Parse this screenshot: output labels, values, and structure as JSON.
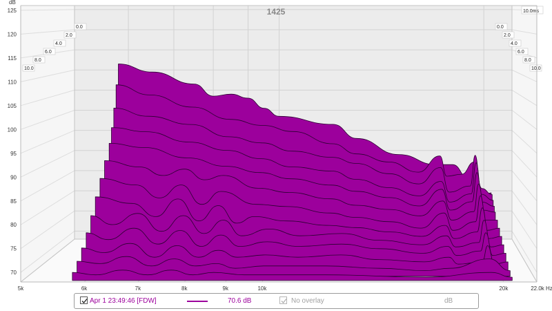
{
  "chart_data": {
    "type": "area",
    "variant": "waterfall-3d",
    "title": "1425",
    "y_unit": "dB",
    "x_unit": "Hz",
    "ylim": [
      68,
      126
    ],
    "xlim_hz": [
      5000,
      22000
    ],
    "y_ticks": [
      70,
      75,
      80,
      85,
      90,
      95,
      100,
      105,
      110,
      115,
      120,
      125
    ],
    "x_ticks": [
      {
        "hz": 5000,
        "label": "5k"
      },
      {
        "hz": 6000,
        "label": "6k"
      },
      {
        "hz": 7000,
        "label": "7k"
      },
      {
        "hz": 8000,
        "label": "8k"
      },
      {
        "hz": 9000,
        "label": "9k"
      },
      {
        "hz": 10000,
        "label": "10k"
      },
      {
        "hz": 20000,
        "label": "20k"
      },
      {
        "hz": 22000,
        "label": "22.0k Hz"
      }
    ],
    "time_ticks_ms": [
      "0.0",
      "2.0",
      "4.0",
      "6.0",
      "8.0",
      "10.0"
    ],
    "time_max_label": "10.0ms",
    "grid": true,
    "fill_color": "#9c009c",
    "line_color": "#2a0030",
    "series": [
      {
        "time_ms": 0.0,
        "points": [
          [
            5800,
            111.5
          ],
          [
            6500,
            109.5
          ],
          [
            7500,
            106.5
          ],
          [
            8000,
            103.5
          ],
          [
            8500,
            104
          ],
          [
            9000,
            103
          ],
          [
            9500,
            100.5
          ],
          [
            10000,
            98.5
          ],
          [
            12000,
            96.5
          ],
          [
            13000,
            93
          ],
          [
            15000,
            89
          ],
          [
            17000,
            86.5
          ],
          [
            18000,
            86.5
          ],
          [
            19000,
            83
          ],
          [
            20000,
            79
          ],
          [
            20500,
            79.5
          ]
        ]
      },
      {
        "time_ms": 0.5,
        "points": [
          [
            5800,
            106.5
          ],
          [
            6500,
            104
          ],
          [
            7500,
            101
          ],
          [
            8500,
            98
          ],
          [
            9500,
            96.5
          ],
          [
            10500,
            95
          ],
          [
            12000,
            92
          ],
          [
            13000,
            89.5
          ],
          [
            14500,
            87.5
          ],
          [
            16000,
            85
          ],
          [
            17200,
            89
          ],
          [
            17600,
            84
          ],
          [
            18500,
            84.5
          ],
          [
            19300,
            87.5
          ],
          [
            19800,
            81
          ],
          [
            20500,
            79.5
          ]
        ]
      },
      {
        "time_ms": 1.0,
        "points": [
          [
            5800,
            101
          ],
          [
            6500,
            99
          ],
          [
            7500,
            97
          ],
          [
            8500,
            94
          ],
          [
            9500,
            92.5
          ],
          [
            10500,
            90.5
          ],
          [
            12000,
            89
          ],
          [
            13000,
            87.5
          ],
          [
            14500,
            85
          ],
          [
            16000,
            82.5
          ],
          [
            17200,
            86.5
          ],
          [
            17700,
            80.5
          ],
          [
            19000,
            82
          ],
          [
            19300,
            89.5
          ],
          [
            19700,
            80
          ],
          [
            20500,
            78.5
          ]
        ]
      },
      {
        "time_ms": 1.5,
        "points": [
          [
            5800,
            96.5
          ],
          [
            6500,
            95.5
          ],
          [
            7500,
            93
          ],
          [
            8500,
            91
          ],
          [
            9500,
            89
          ],
          [
            10500,
            87
          ],
          [
            12000,
            86
          ],
          [
            13000,
            84
          ],
          [
            14500,
            82
          ],
          [
            16000,
            80
          ],
          [
            17200,
            83.5
          ],
          [
            17700,
            78.5
          ],
          [
            19000,
            80.5
          ],
          [
            19300,
            88
          ],
          [
            19700,
            78.5
          ],
          [
            20500,
            77.5
          ]
        ]
      },
      {
        "time_ms": 2.0,
        "points": [
          [
            5800,
            93
          ],
          [
            6500,
            92
          ],
          [
            7500,
            89.5
          ],
          [
            8500,
            87.5
          ],
          [
            9500,
            86
          ],
          [
            10500,
            84.5
          ],
          [
            12000,
            83
          ],
          [
            13000,
            81.5
          ],
          [
            14500,
            80
          ],
          [
            16000,
            78
          ],
          [
            17200,
            82
          ],
          [
            17700,
            77
          ],
          [
            19000,
            79
          ],
          [
            19300,
            86
          ],
          [
            19700,
            77
          ],
          [
            20500,
            76.5
          ]
        ]
      },
      {
        "time_ms": 3.0,
        "points": [
          [
            5800,
            89.5
          ],
          [
            6500,
            88
          ],
          [
            7000,
            86
          ],
          [
            7500,
            87.5
          ],
          [
            8000,
            85
          ],
          [
            8500,
            86
          ],
          [
            9500,
            83
          ],
          [
            10500,
            82
          ],
          [
            12000,
            80.5
          ],
          [
            13000,
            79
          ],
          [
            14500,
            78
          ],
          [
            16000,
            76.5
          ],
          [
            17200,
            80
          ],
          [
            17700,
            75.5
          ],
          [
            19000,
            77.5
          ],
          [
            19300,
            84
          ],
          [
            19700,
            75.5
          ],
          [
            20500,
            75.5
          ]
        ]
      },
      {
        "time_ms": 4.0,
        "points": [
          [
            5800,
            86
          ],
          [
            6500,
            84.5
          ],
          [
            7000,
            81.5
          ],
          [
            7500,
            84.5
          ],
          [
            8000,
            80
          ],
          [
            8500,
            83
          ],
          [
            9500,
            80
          ],
          [
            10500,
            79.5
          ],
          [
            12000,
            78
          ],
          [
            13000,
            77
          ],
          [
            14500,
            76
          ],
          [
            16000,
            74.5
          ],
          [
            17200,
            78
          ],
          [
            17700,
            74
          ],
          [
            19000,
            76
          ],
          [
            19300,
            82
          ],
          [
            19700,
            74
          ],
          [
            20500,
            74.5
          ]
        ]
      },
      {
        "time_ms": 5.0,
        "points": [
          [
            5800,
            82.5
          ],
          [
            6500,
            81
          ],
          [
            7000,
            78
          ],
          [
            7500,
            82
          ],
          [
            8000,
            77
          ],
          [
            8500,
            80.5
          ],
          [
            9000,
            76.5
          ],
          [
            9500,
            78
          ],
          [
            10500,
            77
          ],
          [
            12000,
            76
          ],
          [
            13000,
            75.5
          ],
          [
            14500,
            74.5
          ],
          [
            16000,
            73.5
          ],
          [
            17200,
            76
          ],
          [
            17700,
            73
          ],
          [
            19000,
            74.5
          ],
          [
            19300,
            80
          ],
          [
            19700,
            73
          ],
          [
            20500,
            73.5
          ]
        ]
      },
      {
        "time_ms": 6.0,
        "points": [
          [
            5800,
            79
          ],
          [
            6200,
            77
          ],
          [
            6700,
            79.5
          ],
          [
            7200,
            75.5
          ],
          [
            7700,
            79
          ],
          [
            8200,
            75
          ],
          [
            8700,
            78
          ],
          [
            9200,
            74.5
          ],
          [
            10000,
            76
          ],
          [
            11000,
            74.5
          ],
          [
            12500,
            75
          ],
          [
            14000,
            73.5
          ],
          [
            16000,
            72.5
          ],
          [
            17200,
            74.5
          ],
          [
            17700,
            72
          ],
          [
            19000,
            73
          ],
          [
            19300,
            78
          ],
          [
            19700,
            72
          ],
          [
            20500,
            72.5
          ]
        ]
      },
      {
        "time_ms": 7.0,
        "points": [
          [
            5800,
            76
          ],
          [
            6200,
            74.5
          ],
          [
            6700,
            77
          ],
          [
            7200,
            73.5
          ],
          [
            7700,
            76.5
          ],
          [
            8200,
            73
          ],
          [
            8700,
            75.5
          ],
          [
            9200,
            73
          ],
          [
            10000,
            74
          ],
          [
            11000,
            73
          ],
          [
            12500,
            73.5
          ],
          [
            14000,
            72.5
          ],
          [
            16000,
            71.5
          ],
          [
            17200,
            73
          ],
          [
            17700,
            71
          ],
          [
            19000,
            72
          ],
          [
            19300,
            76
          ],
          [
            19700,
            71
          ],
          [
            20500,
            71.5
          ]
        ]
      },
      {
        "time_ms": 8.0,
        "points": [
          [
            5800,
            73.5
          ],
          [
            6200,
            72.5
          ],
          [
            6700,
            74.5
          ],
          [
            7200,
            71.5
          ],
          [
            7700,
            74
          ],
          [
            8200,
            71.5
          ],
          [
            8700,
            73
          ],
          [
            9200,
            71.5
          ],
          [
            10000,
            72
          ],
          [
            11000,
            71.5
          ],
          [
            12500,
            72
          ],
          [
            14000,
            71
          ],
          [
            16000,
            70.5
          ],
          [
            17200,
            71.5
          ],
          [
            17700,
            70
          ],
          [
            19000,
            70.5
          ],
          [
            19300,
            74
          ],
          [
            19700,
            70
          ],
          [
            20500,
            70.5
          ]
        ]
      },
      {
        "time_ms": 9.0,
        "points": [
          [
            5800,
            71.5
          ],
          [
            6200,
            71
          ],
          [
            6700,
            72.5
          ],
          [
            7200,
            70.5
          ],
          [
            7700,
            72
          ],
          [
            8200,
            70.5
          ],
          [
            8700,
            71
          ],
          [
            9200,
            70
          ],
          [
            10000,
            70.5
          ],
          [
            12000,
            70.5
          ],
          [
            14000,
            70
          ],
          [
            16000,
            69.5
          ],
          [
            17200,
            70
          ],
          [
            19300,
            72
          ],
          [
            20500,
            69.5
          ]
        ]
      },
      {
        "time_ms": 10.0,
        "points": [
          [
            5800,
            70
          ],
          [
            6200,
            69.5
          ],
          [
            6700,
            70.5
          ],
          [
            7200,
            69.5
          ],
          [
            7700,
            70.5
          ],
          [
            8200,
            69.5
          ],
          [
            8700,
            70
          ],
          [
            9500,
            69.5
          ],
          [
            12000,
            69.5
          ],
          [
            16000,
            69
          ],
          [
            19300,
            70
          ],
          [
            20500,
            69
          ]
        ]
      }
    ]
  },
  "legend": {
    "entry_checked": true,
    "entry_name": "Apr 1 23:49:46 [FDW]",
    "entry_value": "70.6 dB",
    "overlay_checked": true,
    "overlay_label": "No overlay",
    "unit": "dB",
    "color": "#9c009c"
  }
}
